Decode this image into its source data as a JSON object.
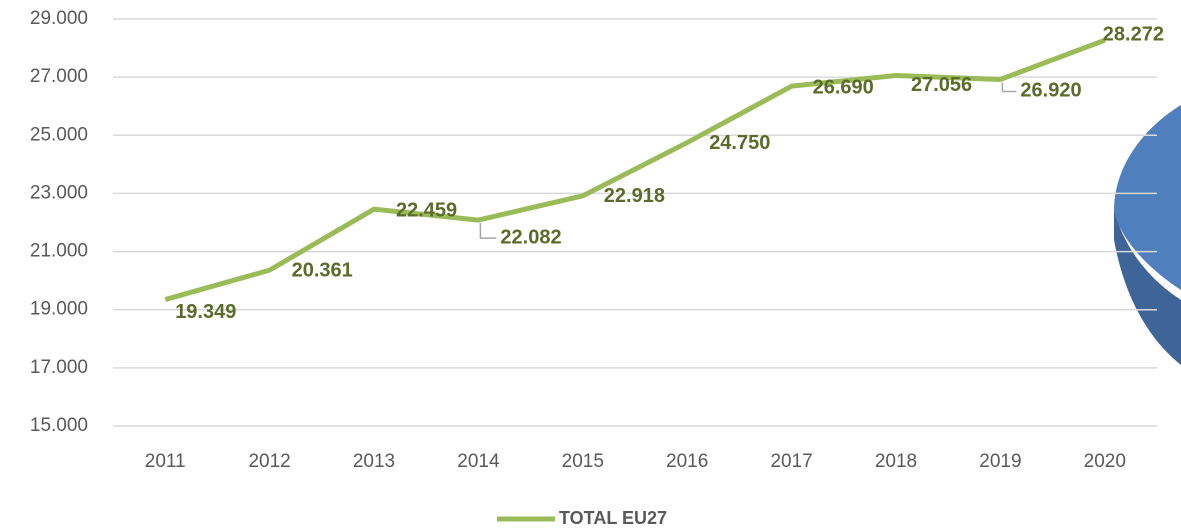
{
  "chart_data": {
    "type": "line",
    "categories": [
      "2011",
      "2012",
      "2013",
      "2014",
      "2015",
      "2016",
      "2017",
      "2018",
      "2019",
      "2020"
    ],
    "series": [
      {
        "name": "TOTAL EU27",
        "color": "#9bbb59",
        "values": [
          19349,
          20361,
          22459,
          22082,
          22918,
          24750,
          26690,
          27056,
          26920,
          28272
        ],
        "value_labels": [
          "19.349",
          "20.361",
          "22.459",
          "22.082",
          "22.918",
          "24.750",
          "26.690",
          "27.056",
          "26.920",
          "28.272"
        ]
      }
    ],
    "ylim": [
      15000,
      29000
    ],
    "yticks": [
      {
        "value": 15000,
        "label": "15.000"
      },
      {
        "value": 17000,
        "label": "17.000"
      },
      {
        "value": 19000,
        "label": "19.000"
      },
      {
        "value": 21000,
        "label": "21.000"
      },
      {
        "value": 23000,
        "label": "23.000"
      },
      {
        "value": 25000,
        "label": "25.000"
      },
      {
        "value": 27000,
        "label": "27.000"
      },
      {
        "value": 29000,
        "label": "29.000"
      }
    ],
    "grid": true,
    "legend": "bottom"
  }
}
